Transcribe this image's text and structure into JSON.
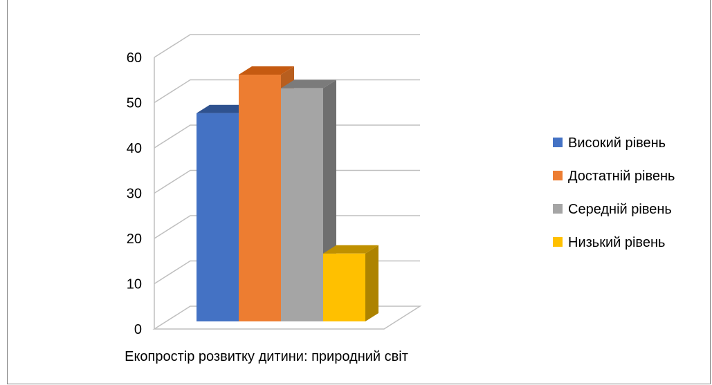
{
  "chart_data": {
    "type": "bar",
    "style": "3d-column",
    "categories": [
      "Екопростір розвитку дитини: природний світ"
    ],
    "series": [
      {
        "name": "Високий рівень",
        "values": [
          46
        ],
        "color": "#4472C4",
        "side_color": "#2F5597",
        "top_color": "#2F528F"
      },
      {
        "name": "Достатній рівень",
        "values": [
          54.5
        ],
        "color": "#ED7D31",
        "side_color": "#B85E1E",
        "top_color": "#C55A11"
      },
      {
        "name": "Середній  рівень",
        "values": [
          51.5
        ],
        "color": "#A5A5A5",
        "side_color": "#6F6F6F",
        "top_color": "#7B7B7B"
      },
      {
        "name": "Низький рівень",
        "values": [
          15
        ],
        "color": "#FFC000",
        "side_color": "#AD8300",
        "top_color": "#BF9000"
      }
    ],
    "yticks": [
      "0",
      "10",
      "20",
      "30",
      "40",
      "50",
      "60"
    ],
    "ylim": [
      0,
      60
    ],
    "grid": true,
    "legend_position": "right"
  }
}
